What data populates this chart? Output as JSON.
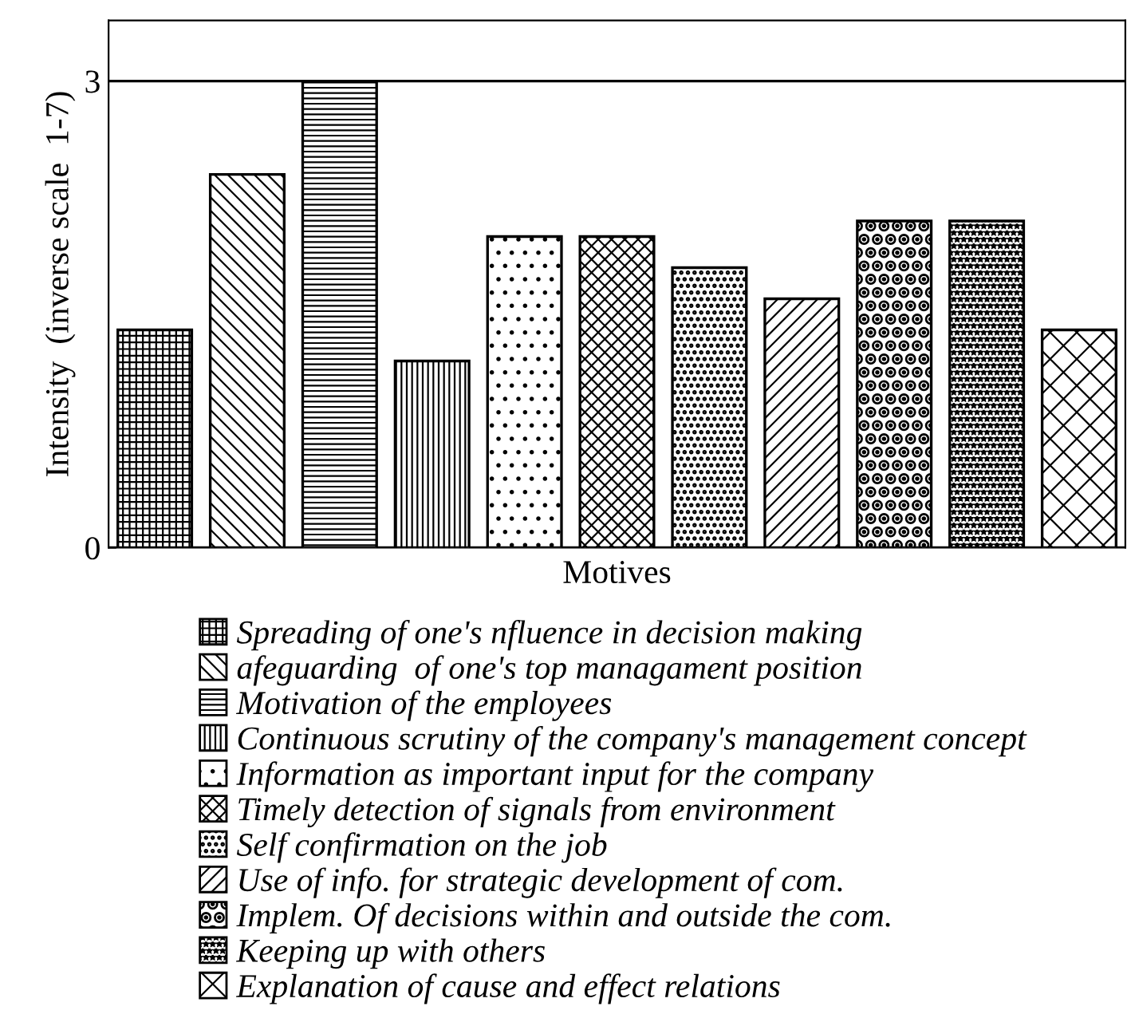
{
  "chart_data": {
    "type": "bar",
    "xlabel": "Motives",
    "ylabel": "Intensity  (inverse scale  1-7)",
    "categories": [
      null,
      null,
      null,
      null,
      null,
      null,
      null,
      null,
      null,
      null,
      null
    ],
    "series": [
      {
        "name": "Spreading of one's nfluence in decision making",
        "values": [
          1.4,
          null,
          null,
          null,
          null,
          null,
          null,
          null,
          null,
          null,
          null
        ]
      },
      {
        "name": "afeguarding  of one's top managament position",
        "values": [
          null,
          2.4,
          null,
          null,
          null,
          null,
          null,
          null,
          null,
          null,
          null
        ]
      },
      {
        "name": "Motivation of the employees",
        "values": [
          null,
          null,
          3.0,
          null,
          null,
          null,
          null,
          null,
          null,
          null,
          null
        ]
      },
      {
        "name": "Continuous scrutiny of the company's management concept",
        "values": [
          null,
          null,
          null,
          1.2,
          null,
          null,
          null,
          null,
          null,
          null,
          null
        ]
      },
      {
        "name": "Information as important input for the company",
        "values": [
          null,
          null,
          null,
          null,
          2.0,
          null,
          null,
          null,
          null,
          null,
          null
        ]
      },
      {
        "name": "Timely detection of signals from environment",
        "values": [
          null,
          null,
          null,
          null,
          null,
          2.0,
          null,
          null,
          null,
          null,
          null
        ]
      },
      {
        "name": "Self confirmation on the job",
        "values": [
          null,
          null,
          null,
          null,
          null,
          null,
          1.8,
          null,
          null,
          null,
          null
        ]
      },
      {
        "name": "Use of info. for strategic development of com.",
        "values": [
          null,
          null,
          null,
          null,
          null,
          null,
          null,
          1.6,
          null,
          null,
          null
        ]
      },
      {
        "name": "Implem. Of decisions within and outside the com.",
        "values": [
          null,
          null,
          null,
          null,
          null,
          null,
          null,
          null,
          2.1,
          null,
          null
        ]
      },
      {
        "name": "Keeping up with others",
        "values": [
          null,
          null,
          null,
          null,
          null,
          null,
          null,
          null,
          null,
          2.1,
          null
        ]
      },
      {
        "name": "Explanation of cause and effect relations",
        "values": [
          null,
          null,
          null,
          null,
          null,
          null,
          null,
          null,
          null,
          null,
          1.4
        ]
      }
    ],
    "ylim": [
      0,
      3.39
    ],
    "yticks": [
      0,
      3
    ],
    "grid": "y",
    "legend": "bottom"
  }
}
